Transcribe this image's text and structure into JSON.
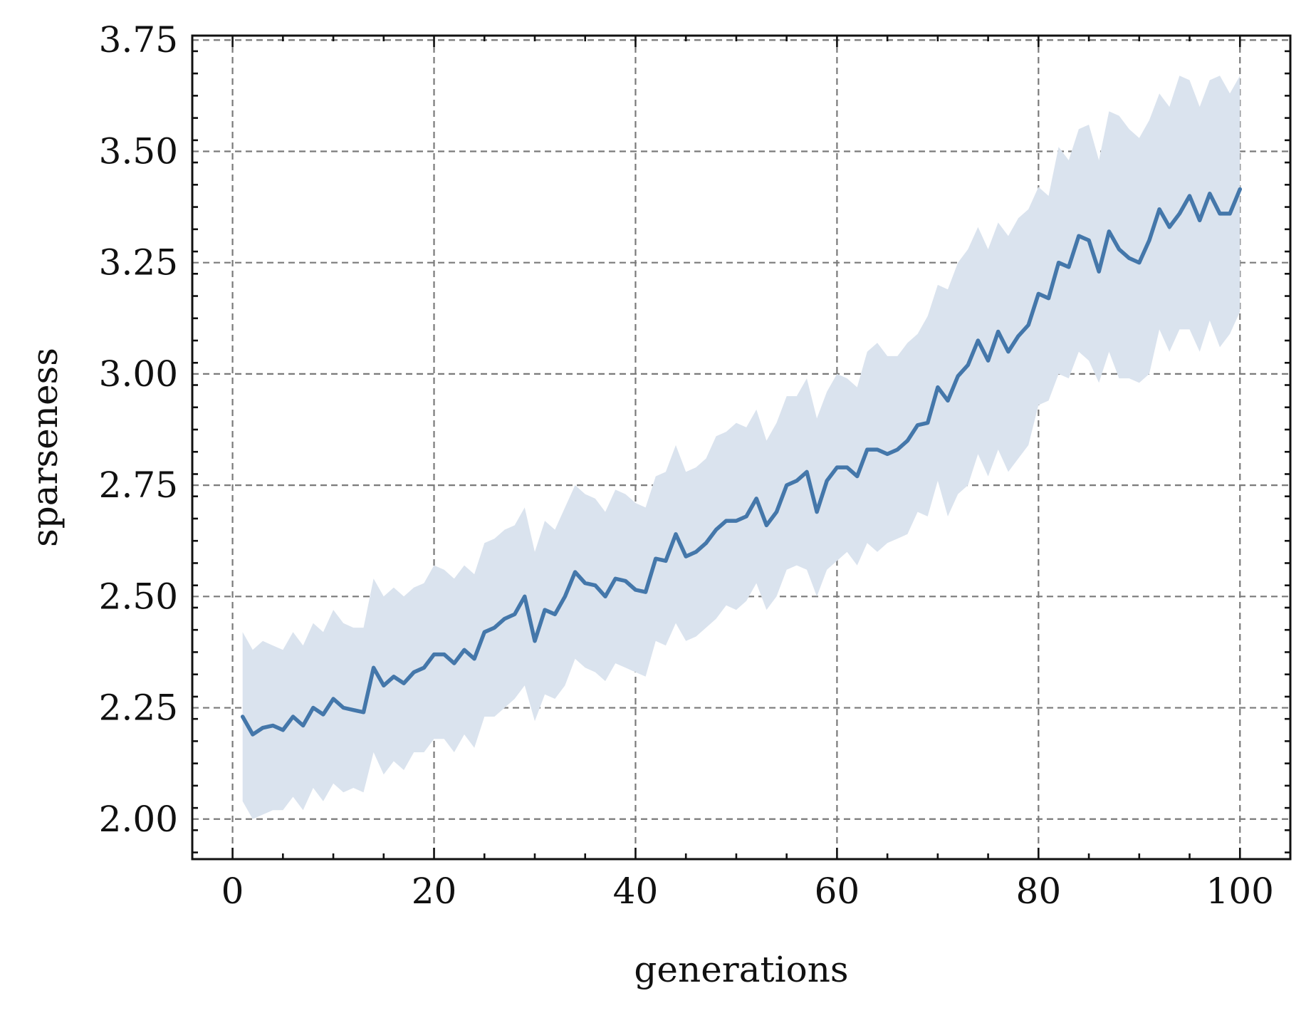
{
  "chart_data": {
    "type": "line",
    "title": "",
    "xlabel": "generations",
    "ylabel": "sparseness",
    "xlim": [
      -4,
      105
    ],
    "ylim": [
      1.91,
      3.76
    ],
    "xticks": [
      0,
      20,
      40,
      60,
      80,
      100
    ],
    "xtick_labels": [
      "0",
      "20",
      "40",
      "60",
      "80",
      "100"
    ],
    "yticks": [
      2.0,
      2.25,
      2.5,
      2.75,
      3.0,
      3.25,
      3.5,
      3.75
    ],
    "ytick_labels": [
      "2.00",
      "2.25",
      "2.50",
      "2.75",
      "3.00",
      "3.25",
      "3.50",
      "3.75"
    ],
    "grid": true,
    "line_color": "#4477aa",
    "band_color": "#dae3ee",
    "series": [
      {
        "x": [
          1,
          2,
          3,
          4,
          5,
          6,
          7,
          8,
          9,
          10,
          11,
          12,
          13,
          14,
          15,
          16,
          17,
          18,
          19,
          20,
          21,
          22,
          23,
          24,
          25,
          26,
          27,
          28,
          29,
          30,
          31,
          32,
          33,
          34,
          35,
          36,
          37,
          38,
          39,
          40,
          41,
          42,
          43,
          44,
          45,
          46,
          47,
          48,
          49,
          50,
          51,
          52,
          53,
          54,
          55,
          56,
          57,
          58,
          59,
          60,
          61,
          62,
          63,
          64,
          65,
          66,
          67,
          68,
          69,
          70,
          71,
          72,
          73,
          74,
          75,
          76,
          77,
          78,
          79,
          80,
          81,
          82,
          83,
          84,
          85,
          86,
          87,
          88,
          89,
          90,
          91,
          92,
          93,
          94,
          95,
          96,
          97,
          98,
          99,
          100
        ],
        "values": [
          2.23,
          2.19,
          2.205,
          2.21,
          2.2,
          2.23,
          2.21,
          2.25,
          2.235,
          2.27,
          2.25,
          2.245,
          2.24,
          2.34,
          2.3,
          2.32,
          2.305,
          2.33,
          2.34,
          2.37,
          2.37,
          2.35,
          2.38,
          2.36,
          2.42,
          2.43,
          2.45,
          2.46,
          2.5,
          2.4,
          2.47,
          2.46,
          2.5,
          2.555,
          2.53,
          2.525,
          2.5,
          2.54,
          2.535,
          2.515,
          2.51,
          2.585,
          2.58,
          2.64,
          2.59,
          2.6,
          2.62,
          2.65,
          2.67,
          2.67,
          2.68,
          2.72,
          2.66,
          2.69,
          2.75,
          2.76,
          2.78,
          2.69,
          2.76,
          2.79,
          2.79,
          2.77,
          2.83,
          2.83,
          2.82,
          2.83,
          2.85,
          2.885,
          2.89,
          2.97,
          2.94,
          2.995,
          3.02,
          3.075,
          3.03,
          3.095,
          3.05,
          3.085,
          3.11,
          3.18,
          3.17,
          3.25,
          3.24,
          3.31,
          3.3,
          3.23,
          3.32,
          3.28,
          3.26,
          3.25,
          3.3,
          3.37,
          3.33,
          3.36,
          3.4,
          3.345,
          3.405,
          3.36,
          3.36,
          3.415
        ],
        "lower": [
          2.04,
          2.0,
          2.01,
          2.02,
          2.02,
          2.05,
          2.02,
          2.07,
          2.04,
          2.08,
          2.06,
          2.07,
          2.06,
          2.15,
          2.1,
          2.13,
          2.11,
          2.15,
          2.15,
          2.18,
          2.18,
          2.15,
          2.19,
          2.16,
          2.23,
          2.23,
          2.25,
          2.27,
          2.3,
          2.22,
          2.28,
          2.27,
          2.3,
          2.36,
          2.34,
          2.33,
          2.31,
          2.35,
          2.34,
          2.33,
          2.32,
          2.4,
          2.39,
          2.44,
          2.4,
          2.41,
          2.43,
          2.45,
          2.48,
          2.47,
          2.49,
          2.53,
          2.47,
          2.5,
          2.56,
          2.57,
          2.56,
          2.5,
          2.56,
          2.58,
          2.6,
          2.57,
          2.62,
          2.6,
          2.62,
          2.63,
          2.64,
          2.69,
          2.68,
          2.76,
          2.68,
          2.73,
          2.75,
          2.82,
          2.77,
          2.83,
          2.78,
          2.81,
          2.84,
          2.93,
          2.94,
          3.0,
          2.99,
          3.05,
          3.03,
          2.98,
          3.05,
          2.99,
          2.99,
          2.98,
          3.0,
          3.1,
          3.05,
          3.1,
          3.1,
          3.05,
          3.12,
          3.06,
          3.09,
          3.14
        ],
        "upper": [
          2.42,
          2.38,
          2.4,
          2.39,
          2.38,
          2.42,
          2.39,
          2.44,
          2.42,
          2.47,
          2.44,
          2.43,
          2.43,
          2.54,
          2.5,
          2.52,
          2.5,
          2.52,
          2.53,
          2.57,
          2.56,
          2.54,
          2.57,
          2.55,
          2.62,
          2.63,
          2.65,
          2.66,
          2.7,
          2.6,
          2.67,
          2.65,
          2.7,
          2.75,
          2.73,
          2.72,
          2.69,
          2.74,
          2.73,
          2.71,
          2.7,
          2.77,
          2.78,
          2.84,
          2.78,
          2.79,
          2.81,
          2.86,
          2.87,
          2.89,
          2.88,
          2.92,
          2.85,
          2.89,
          2.95,
          2.95,
          2.99,
          2.9,
          2.96,
          3.0,
          2.99,
          2.97,
          3.05,
          3.07,
          3.04,
          3.04,
          3.07,
          3.09,
          3.13,
          3.2,
          3.19,
          3.25,
          3.28,
          3.33,
          3.28,
          3.34,
          3.31,
          3.35,
          3.37,
          3.42,
          3.4,
          3.51,
          3.48,
          3.55,
          3.56,
          3.48,
          3.59,
          3.58,
          3.55,
          3.53,
          3.57,
          3.63,
          3.6,
          3.67,
          3.66,
          3.6,
          3.66,
          3.67,
          3.63,
          3.67
        ]
      }
    ]
  }
}
